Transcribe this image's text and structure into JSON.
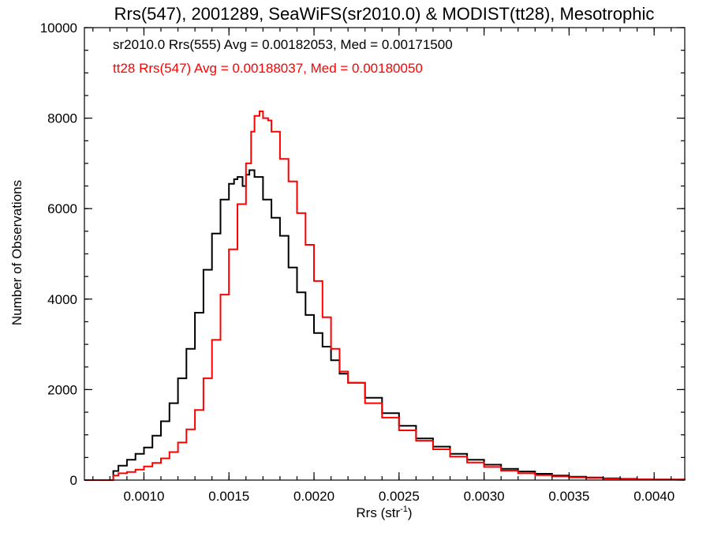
{
  "chart_data": {
    "type": "line",
    "title": "Rrs(547), 2001289, SeaWiFS(sr2010.0) & MODIST(tt28), Mesotrophic",
    "xlabel": "Rrs (str",
    "xlabel_sup": "-1",
    "xlabel_close": ")",
    "ylabel": "Number of Observations",
    "xlim": [
      0.00065,
      0.00418
    ],
    "ylim": [
      0,
      10000
    ],
    "xticks": [
      0.001,
      0.0015,
      0.002,
      0.0025,
      0.003,
      0.0035,
      0.004
    ],
    "xtick_labels": [
      "0.0010",
      "0.0015",
      "0.0020",
      "0.0025",
      "0.0030",
      "0.0035",
      "0.0040"
    ],
    "yticks": [
      0,
      2000,
      4000,
      6000,
      8000,
      10000
    ],
    "ytick_labels": [
      "0",
      "2000",
      "4000",
      "6000",
      "8000",
      "10000"
    ],
    "grid": false,
    "legend_position": "top-left",
    "series": [
      {
        "label": "sr2010.0 Rrs(555) Avg = 0.00182053, Med = 0.00171500",
        "color": "#000000",
        "x": [
          0.00065,
          0.0008,
          0.00082,
          0.00085,
          0.0009,
          0.00095,
          0.001,
          0.00105,
          0.0011,
          0.00115,
          0.0012,
          0.00125,
          0.0013,
          0.00135,
          0.0014,
          0.00145,
          0.0015,
          0.00153,
          0.00155,
          0.00158,
          0.0016,
          0.00162,
          0.00165,
          0.0017,
          0.00175,
          0.0018,
          0.00185,
          0.0019,
          0.00195,
          0.002,
          0.00205,
          0.0021,
          0.00215,
          0.0022,
          0.0023,
          0.0024,
          0.0025,
          0.0026,
          0.0027,
          0.0028,
          0.0029,
          0.003,
          0.0031,
          0.0032,
          0.0033,
          0.0034,
          0.0035,
          0.0036,
          0.0037,
          0.0038,
          0.0039,
          0.004,
          0.00418
        ],
        "y": [
          0,
          0,
          200,
          320,
          450,
          580,
          720,
          980,
          1300,
          1700,
          2250,
          2900,
          3700,
          4650,
          5450,
          6200,
          6550,
          6650,
          6700,
          6500,
          6750,
          6850,
          6700,
          6200,
          5800,
          5400,
          4700,
          4150,
          3650,
          3250,
          2950,
          2650,
          2350,
          2150,
          1820,
          1480,
          1200,
          920,
          740,
          580,
          450,
          340,
          250,
          190,
          140,
          100,
          75,
          55,
          40,
          28,
          18,
          12,
          8
        ]
      },
      {
        "label": "tt28 Rrs(547) Avg = 0.00188037, Med = 0.00180050",
        "color": "#ff0000",
        "x": [
          0.00065,
          0.0008,
          0.00082,
          0.00085,
          0.0009,
          0.00095,
          0.001,
          0.00105,
          0.0011,
          0.00115,
          0.0012,
          0.00125,
          0.0013,
          0.00135,
          0.0014,
          0.00145,
          0.0015,
          0.00155,
          0.0016,
          0.00163,
          0.00165,
          0.00168,
          0.0017,
          0.00173,
          0.00175,
          0.0018,
          0.00185,
          0.0019,
          0.00195,
          0.002,
          0.00205,
          0.0021,
          0.00215,
          0.0022,
          0.0023,
          0.0024,
          0.0025,
          0.0026,
          0.0027,
          0.0028,
          0.0029,
          0.003,
          0.0031,
          0.0032,
          0.0033,
          0.0034,
          0.0035,
          0.0036,
          0.0037,
          0.0038,
          0.0039,
          0.004,
          0.00418
        ],
        "y": [
          0,
          0,
          100,
          150,
          180,
          230,
          300,
          380,
          480,
          620,
          830,
          1120,
          1550,
          2250,
          3100,
          4100,
          5100,
          6100,
          7000,
          7700,
          8050,
          8150,
          8000,
          7950,
          7700,
          7100,
          6600,
          5900,
          5200,
          4400,
          3600,
          2900,
          2400,
          2150,
          1700,
          1380,
          1100,
          870,
          680,
          520,
          390,
          290,
          210,
          150,
          110,
          80,
          60,
          45,
          32,
          22,
          15,
          10,
          6
        ]
      }
    ]
  }
}
